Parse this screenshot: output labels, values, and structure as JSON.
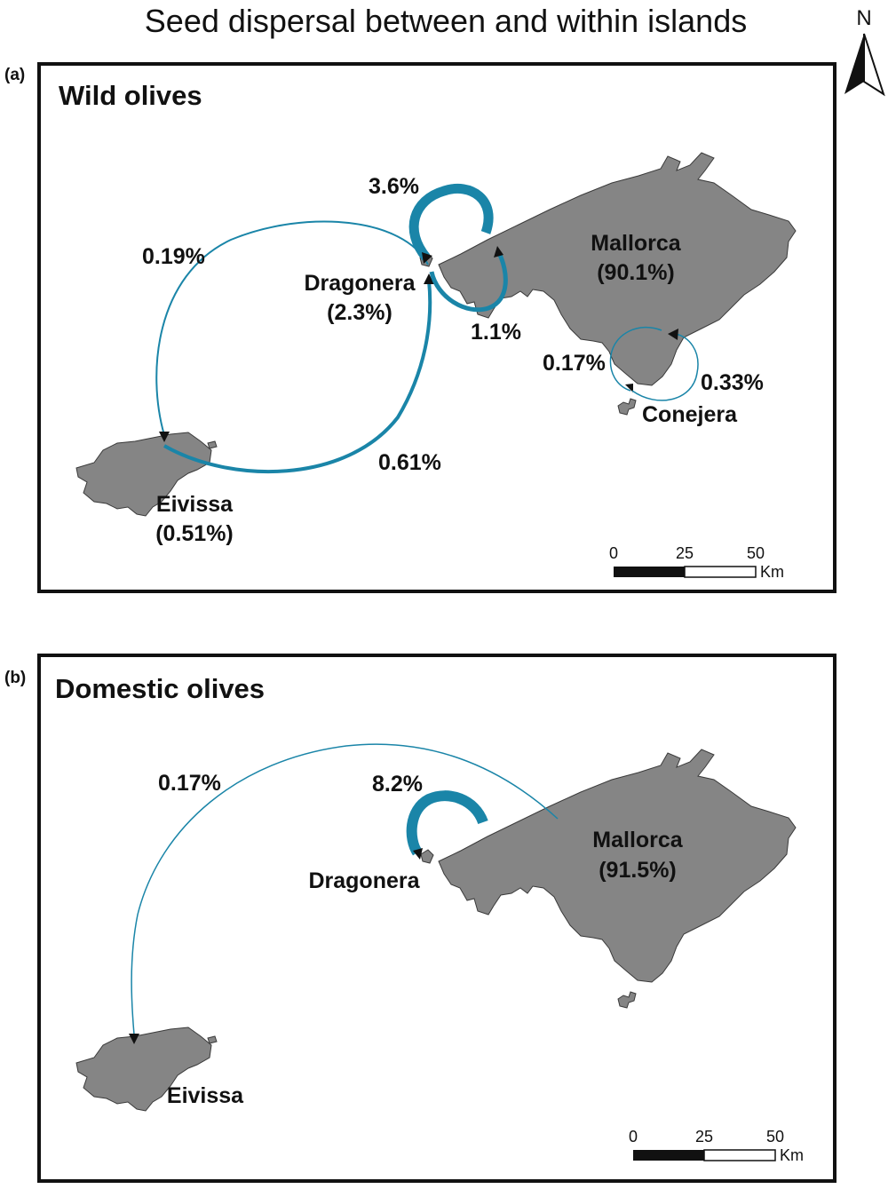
{
  "title": "Seed dispersal between and within islands",
  "north_label": "N",
  "colors": {
    "flow": "#1a85a8",
    "land": "#858585",
    "frame": "#111111"
  },
  "panels": [
    {
      "label": "(a)",
      "title": "Wild olives",
      "islands": {
        "mallorca": {
          "name": "Mallorca",
          "share": "(90.1%)"
        },
        "dragonera": {
          "name": "Dragonera",
          "share": "(2.3%)"
        },
        "eivissa": {
          "name": "Eivissa",
          "share": "(0.51%)"
        },
        "conejera": {
          "name": "Conejera"
        }
      },
      "flows": [
        {
          "from": "Dragonera",
          "to": "Dragonera",
          "label": "3.6%"
        },
        {
          "from": "Dragonera",
          "to": "Eivissa",
          "label": "0.19%"
        },
        {
          "from": "Eivissa",
          "to": "Dragonera",
          "label": "0.61%"
        },
        {
          "from": "Mallorca",
          "to": "Dragonera",
          "label": "1.1%"
        },
        {
          "from": "Mallorca",
          "to": "Conejera",
          "label": "0.17%"
        },
        {
          "from": "Conejera",
          "to": "Mallorca",
          "label": "0.33%"
        }
      ],
      "scale": {
        "ticks": [
          "0",
          "25",
          "50"
        ],
        "unit": "Km"
      }
    },
    {
      "label": "(b)",
      "title": "Domestic olives",
      "islands": {
        "mallorca": {
          "name": "Mallorca",
          "share": "(91.5%)"
        },
        "dragonera": {
          "name": "Dragonera"
        },
        "eivissa": {
          "name": "Eivissa"
        }
      },
      "flows": [
        {
          "from": "Dragonera",
          "to": "Dragonera",
          "label": "8.2%"
        },
        {
          "from": "Mallorca",
          "to": "Eivissa",
          "label": "0.17%"
        }
      ],
      "scale": {
        "ticks": [
          "0",
          "25",
          "50"
        ],
        "unit": "Km"
      }
    }
  ]
}
